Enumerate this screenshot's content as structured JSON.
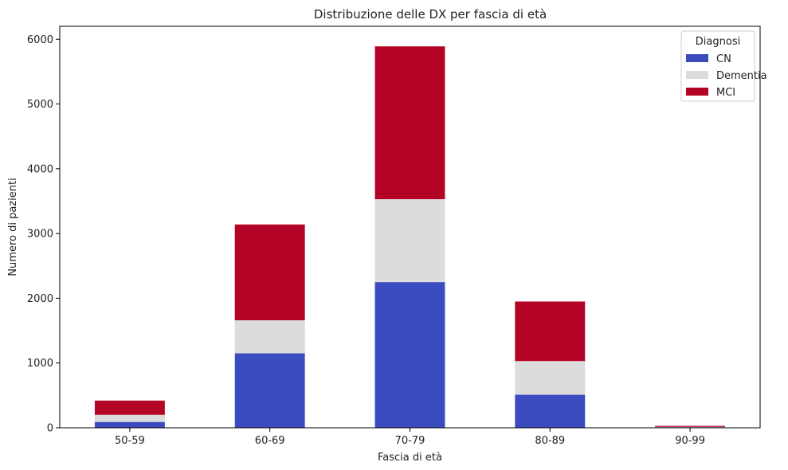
{
  "chart_data": {
    "type": "bar",
    "stacked": true,
    "title": "Distribuzione delle DX per fascia di età",
    "xlabel": "Fascia di età",
    "ylabel": "Numero di pazienti",
    "categories": [
      "50-59",
      "60-69",
      "70-79",
      "80-89",
      "90-99"
    ],
    "series": [
      {
        "name": "CN",
        "color": "#3b4cc0",
        "values": [
          90,
          1150,
          2250,
          510,
          10
        ]
      },
      {
        "name": "Dementia",
        "color": "#dcdcdc",
        "values": [
          110,
          510,
          1280,
          520,
          5
        ]
      },
      {
        "name": "MCI",
        "color": "#b40426",
        "values": [
          220,
          1480,
          2360,
          920,
          15
        ]
      }
    ],
    "ylim": [
      0,
      6200
    ],
    "yticks": [
      0,
      1000,
      2000,
      3000,
      4000,
      5000,
      6000
    ],
    "grid": false,
    "legend": {
      "title": "Diagnosi",
      "position": "top-right"
    }
  }
}
